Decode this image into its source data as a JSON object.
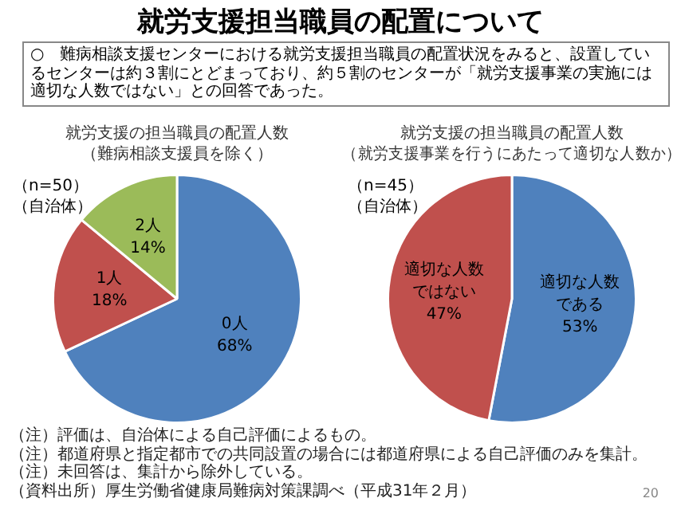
{
  "chart_data": [
    {
      "type": "other",
      "title": "就労支援担当職員の配置について",
      "annotations": [
        "○　難病相談支援センターにおける就労支援担当職員の配置状況をみると、設置しているセンターは約３割にとどまっており、約５割のセンターが「就労支援事業の実施には適切な人数ではない」との回答であった。",
        "（注）評価は、自治体による自己評価によるもの。",
        "（注）都道府県と指定都市での共同設置の場合には都道府県による自己評価のみを集計。",
        "（注）未回答は、集計から除外している。",
        "（資料出所）厚生労働省健康局難病対策課調べ（平成31年２月）",
        "20"
      ]
    },
    {
      "type": "pie",
      "title": "就労支援の担当職員の配置人数",
      "subtitle": "（難病相談支援員を除く）",
      "annotations": [
        "（n=50）",
        "（自治体）"
      ],
      "categories": [
        "0人",
        "1人",
        "2人"
      ],
      "values": [
        68,
        18,
        14
      ],
      "colors": [
        "#4f81bd",
        "#c0504d",
        "#9bbb59"
      ],
      "value_labels": [
        "68%",
        "18%",
        "14%"
      ]
    },
    {
      "type": "pie",
      "title": "就労支援の担当職員の配置人数",
      "subtitle": "（就労支援事業を行うにあたって適切な人数か）",
      "annotations": [
        "（n=45）",
        "（自治体）"
      ],
      "categories": [
        "適切な人数である",
        "適切な人数ではない"
      ],
      "values": [
        53,
        47
      ],
      "colors": [
        "#4f81bd",
        "#c0504d"
      ],
      "value_labels": [
        "53%",
        "47%"
      ]
    }
  ]
}
